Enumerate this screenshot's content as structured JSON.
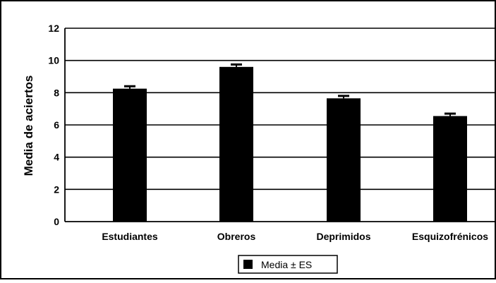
{
  "chart_data": {
    "type": "bar",
    "title": "",
    "xlabel": "",
    "ylabel": "Media de aciertos",
    "categories": [
      "Estudiantes",
      "Obreros",
      "Deprimidos",
      "Esquizofrénicos"
    ],
    "series": [
      {
        "name": "Media ± ES",
        "values": [
          8.25,
          9.6,
          7.65,
          6.55
        ],
        "errors": [
          0.15,
          0.15,
          0.15,
          0.15
        ],
        "color": "#000000"
      }
    ],
    "ylim": [
      0,
      12
    ],
    "yticks": [
      "0",
      "2",
      "4",
      "6",
      "8",
      "10",
      "12"
    ],
    "grid": true,
    "legend_position": "bottom-center"
  }
}
